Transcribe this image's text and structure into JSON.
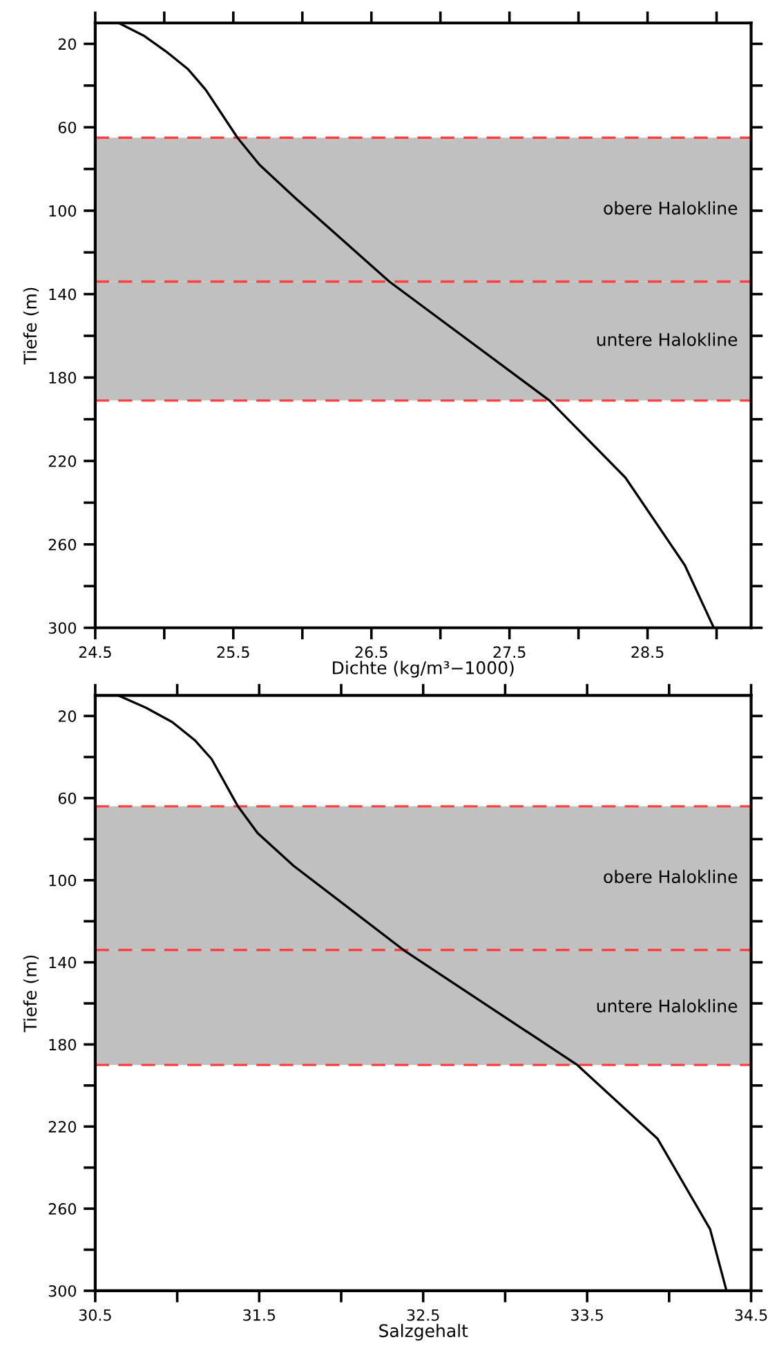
{
  "chart_data": [
    {
      "type": "line",
      "xlabel": "Dichte (kg/m³−1000)",
      "ylabel": "Tiefe (m)",
      "series": [
        {
          "color": "#000000",
          "x": [
            24.67,
            24.85,
            25.01,
            25.17,
            25.3,
            25.53,
            25.69,
            25.95,
            26.63,
            27.79,
            28.34,
            28.77,
            28.98
          ],
          "values": [
            10,
            16,
            23.5,
            32,
            42,
            65,
            78,
            94,
            134,
            191,
            228,
            270,
            300
          ]
        }
      ],
      "xlim": [
        24.5,
        29.25
      ],
      "ylim": [
        300,
        10
      ],
      "xticks": [
        24.5,
        {
          "value": 25,
          "label": null
        },
        25.5,
        {
          "value": 26,
          "label": null
        },
        26.5,
        {
          "value": 27,
          "label": null
        },
        27.5,
        {
          "value": 28,
          "label": null
        },
        28.5,
        {
          "value": 29,
          "label": null
        }
      ],
      "yticks": [
        20,
        {
          "value": 40,
          "label": null
        },
        60,
        {
          "value": 80,
          "label": null
        },
        100,
        {
          "value": 120,
          "label": null
        },
        140,
        {
          "value": 160,
          "label": null
        },
        180,
        {
          "value": 200,
          "label": null
        },
        220,
        {
          "value": 240,
          "label": null
        },
        260,
        {
          "value": 280,
          "label": null
        },
        300
      ],
      "bands": [
        {
          "axis": "y",
          "from": 65,
          "to": 134,
          "label": "obere Halokline",
          "color": "#c0c0c0"
        },
        {
          "axis": "y",
          "from": 134,
          "to": 191,
          "label": "untere Halokline",
          "color": "#c0c0c0"
        }
      ],
      "ref_lines": [
        {
          "axis": "y",
          "value": 65,
          "color": "#ff4040",
          "line_style": "dashed"
        },
        {
          "axis": "y",
          "value": 134,
          "color": "#ff4040",
          "line_style": "dashed"
        },
        {
          "axis": "y",
          "value": 191,
          "color": "#ff4040",
          "line_style": "dashed"
        }
      ],
      "grid": false
    },
    {
      "type": "line",
      "xlabel": "Salzgehalt",
      "ylabel": "Tiefe (m)",
      "series": [
        {
          "color": "#000000",
          "x": [
            30.64,
            30.81,
            30.97,
            31.11,
            31.21,
            31.37,
            31.49,
            31.71,
            32.38,
            33.44,
            33.93,
            34.25,
            34.35
          ],
          "values": [
            10,
            16,
            23,
            32,
            41,
            64,
            77,
            93,
            134,
            190,
            226,
            270,
            300
          ]
        }
      ],
      "xlim": [
        30.5,
        34.5
      ],
      "ylim": [
        300,
        10
      ],
      "xticks": [
        30.5,
        {
          "value": 31,
          "label": null
        },
        31.5,
        {
          "value": 32,
          "label": null
        },
        32.5,
        {
          "value": 33,
          "label": null
        },
        33.5,
        {
          "value": 34,
          "label": null
        },
        34.5
      ],
      "yticks": [
        20,
        {
          "value": 40,
          "label": null
        },
        60,
        {
          "value": 80,
          "label": null
        },
        100,
        {
          "value": 120,
          "label": null
        },
        140,
        {
          "value": 160,
          "label": null
        },
        180,
        {
          "value": 200,
          "label": null
        },
        220,
        {
          "value": 240,
          "label": null
        },
        260,
        {
          "value": 280,
          "label": null
        },
        300
      ],
      "bands": [
        {
          "axis": "y",
          "from": 64,
          "to": 134,
          "label": "obere Halokline",
          "color": "#c0c0c0"
        },
        {
          "axis": "y",
          "from": 134,
          "to": 190,
          "label": "untere Halokline",
          "color": "#c0c0c0"
        }
      ],
      "ref_lines": [
        {
          "axis": "y",
          "value": 64,
          "color": "#ff4040",
          "line_style": "dashed"
        },
        {
          "axis": "y",
          "value": 134,
          "color": "#ff4040",
          "line_style": "dashed"
        },
        {
          "axis": "y",
          "value": 190,
          "color": "#ff4040",
          "line_style": "dashed"
        }
      ],
      "grid": false
    }
  ]
}
